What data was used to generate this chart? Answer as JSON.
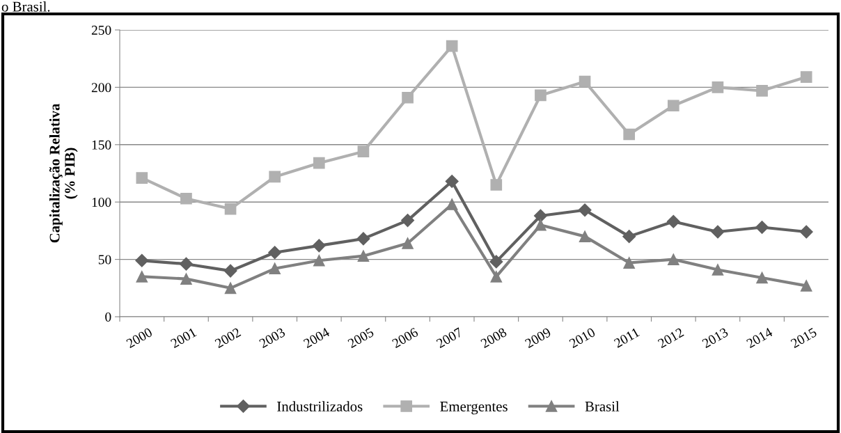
{
  "chart_data": {
    "type": "line",
    "ylabel": "Capitalização Relativa\n(% PIB)",
    "annotations": [
      "o Brasil."
    ],
    "categories": [
      "2000",
      "2001",
      "2002",
      "2003",
      "2004",
      "2005",
      "2006",
      "2007",
      "2008",
      "2009",
      "2010",
      "2011",
      "2012",
      "2013",
      "2014",
      "2015"
    ],
    "series": [
      {
        "name": "Industrilizados",
        "color": "#606060",
        "marker": "diamond",
        "values": [
          49,
          46,
          40,
          56,
          62,
          68,
          84,
          118,
          48,
          88,
          93,
          70,
          83,
          74,
          78,
          74
        ]
      },
      {
        "name": "Emergentes",
        "color": "#b0b0b0",
        "marker": "square",
        "values": [
          121,
          103,
          94,
          122,
          134,
          144,
          191,
          236,
          115,
          193,
          205,
          159,
          184,
          200,
          197,
          209
        ]
      },
      {
        "name": "Brasil",
        "color": "#808080",
        "marker": "triangle",
        "values": [
          35,
          33,
          25,
          42,
          49,
          53,
          64,
          98,
          35,
          80,
          70,
          47,
          50,
          41,
          34,
          27
        ]
      }
    ],
    "ylim": [
      0,
      250
    ],
    "yticks": [
      0,
      50,
      100,
      150,
      200,
      250
    ],
    "grid": "y",
    "legend": "bottom",
    "line_style": "solid"
  }
}
